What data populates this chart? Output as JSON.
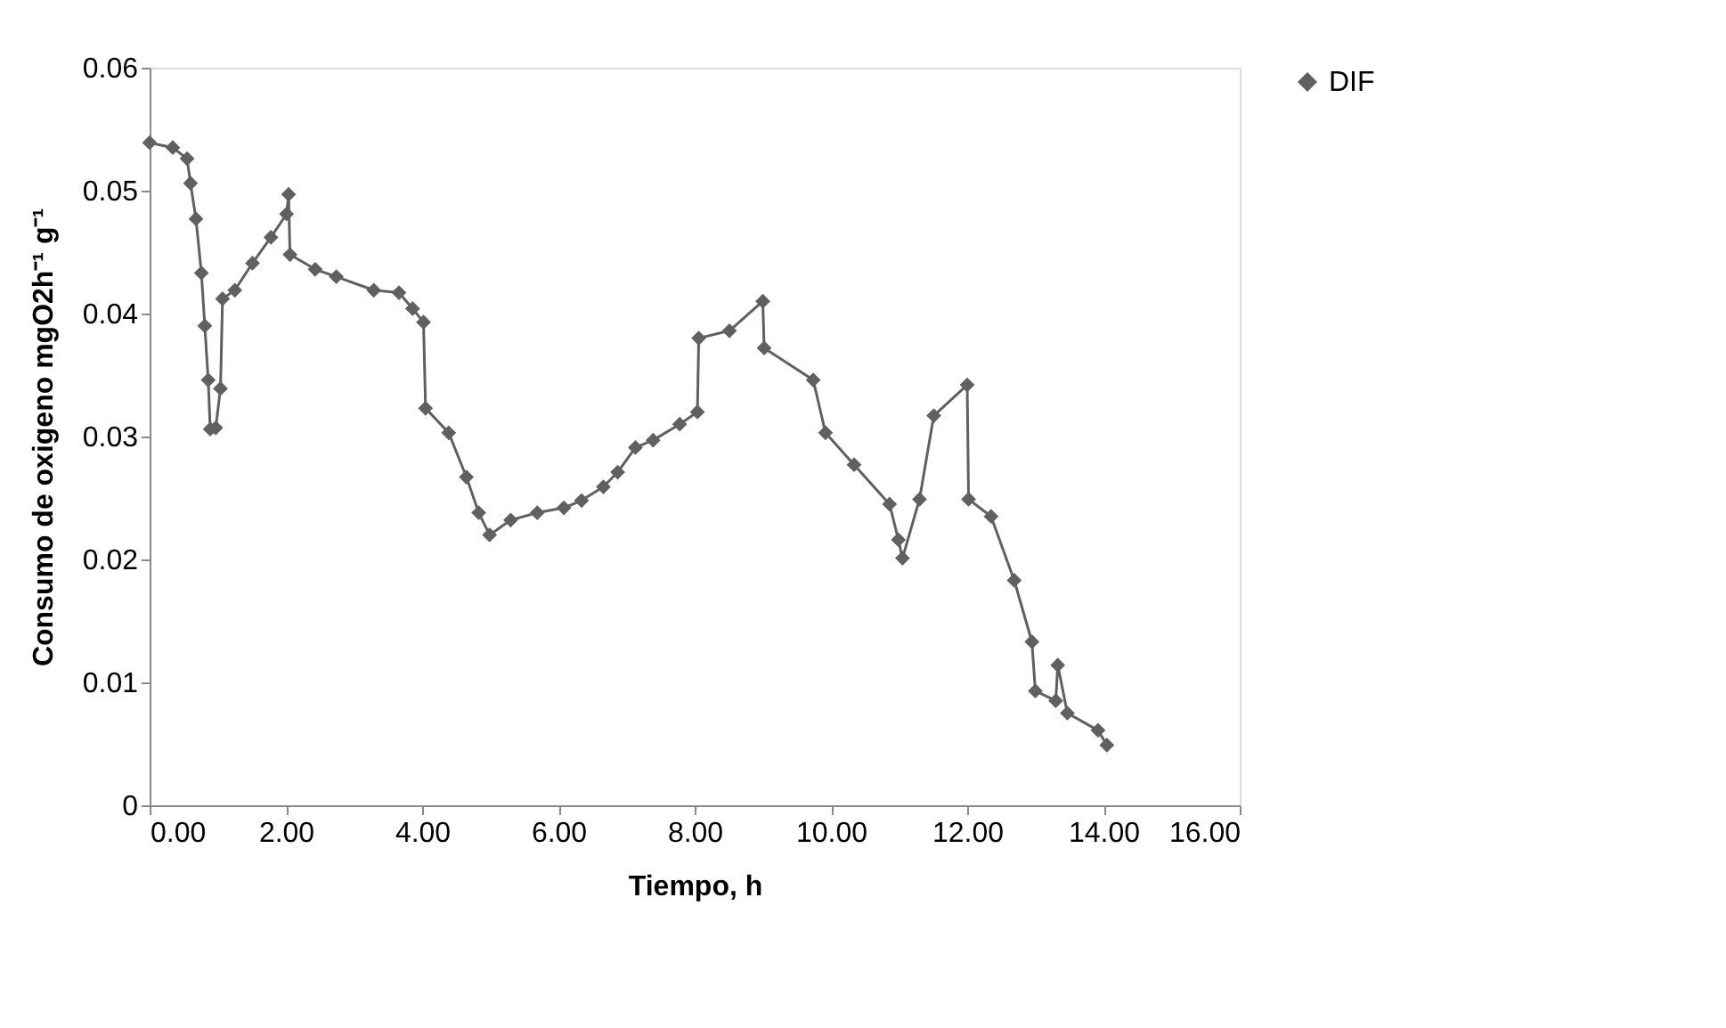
{
  "chart_data": {
    "type": "line",
    "xlabel": "Tiempo, h",
    "ylabel": "Consumo de oxigeno mgO2h⁻¹ g⁻¹",
    "xlim": [
      0,
      16
    ],
    "xticks": [
      {
        "value": 0,
        "label": "0.00"
      },
      {
        "value": 2,
        "label": "2.00"
      },
      {
        "value": 4,
        "label": "4.00"
      },
      {
        "value": 6,
        "label": "6.00"
      },
      {
        "value": 8,
        "label": "8.00"
      },
      {
        "value": 10,
        "label": "10.00"
      },
      {
        "value": 12,
        "label": "12.00"
      },
      {
        "value": 14,
        "label": "14.00"
      },
      {
        "value": 16,
        "label": "16.00"
      }
    ],
    "ylim": [
      0,
      0.06
    ],
    "yticks": [
      0,
      0.01,
      0.02,
      0.03,
      0.04,
      0.05,
      0.06
    ],
    "grid": false,
    "legend": "right",
    "marker": "diamond",
    "line_style": "solid",
    "series": [
      {
        "name": "DIF",
        "color": "#606060",
        "x": [
          0,
          0.34,
          0.55,
          0.6,
          0.68,
          0.76,
          0.81,
          0.86,
          0.89,
          0.97,
          1.04,
          1.07,
          1.25,
          1.51,
          1.78,
          2.01,
          2.04,
          2.06,
          2.43,
          2.74,
          3.29,
          3.66,
          3.86,
          4.02,
          4.05,
          4.39,
          4.65,
          4.83,
          4.99,
          5.3,
          5.69,
          6.08,
          6.34,
          6.66,
          6.87,
          7.13,
          7.39,
          7.78,
          8.04,
          8.06,
          8.51,
          9.0,
          9.02,
          9.74,
          9.92,
          10.34,
          10.86,
          10.99,
          11.05,
          11.3,
          11.51,
          12.0,
          12.02,
          12.35,
          12.69,
          12.95,
          13.0,
          13.3,
          13.33,
          13.47,
          13.92,
          14.05
        ],
        "values": [
          0.0539,
          0.0535,
          0.0526,
          0.0506,
          0.0477,
          0.0433,
          0.039,
          0.0346,
          0.0306,
          0.0307,
          0.0339,
          0.0412,
          0.0419,
          0.0441,
          0.0462,
          0.0481,
          0.0497,
          0.0448,
          0.0436,
          0.043,
          0.0419,
          0.0417,
          0.0404,
          0.0393,
          0.0323,
          0.0303,
          0.0267,
          0.0238,
          0.022,
          0.0232,
          0.0238,
          0.0242,
          0.0248,
          0.0259,
          0.0271,
          0.0291,
          0.0297,
          0.031,
          0.032,
          0.038,
          0.0386,
          0.041,
          0.0372,
          0.0346,
          0.0303,
          0.0277,
          0.0245,
          0.0216,
          0.0201,
          0.0249,
          0.0317,
          0.0342,
          0.0249,
          0.0235,
          0.0183,
          0.0133,
          0.0093,
          0.0085,
          0.0114,
          0.0075,
          0.0061,
          0.0049
        ]
      }
    ]
  }
}
